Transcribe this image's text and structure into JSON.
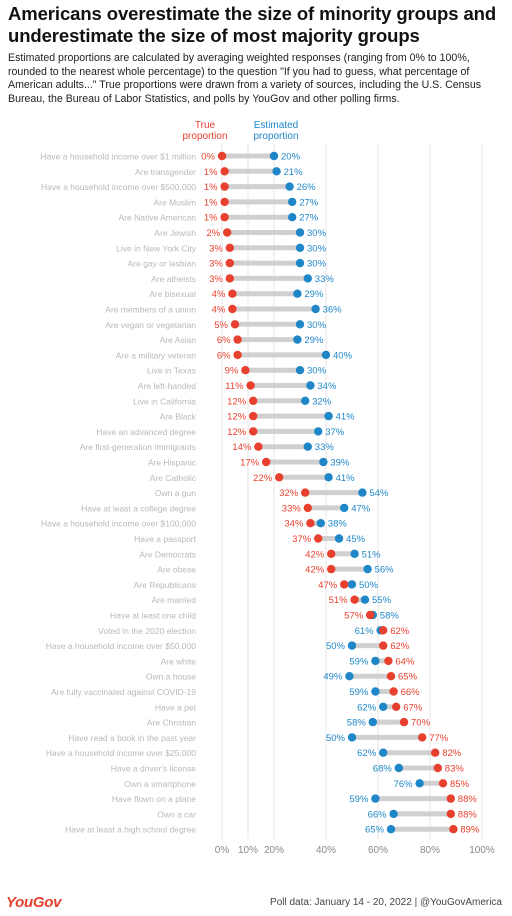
{
  "header": {
    "title": "Americans overestimate the size of minority groups and underestimate the size of most majority groups",
    "subtitle": "Estimated proportions are calculated by averaging weighted responses (ranging from 0% to 100%, rounded to the nearest whole percentage) to the question \"If you had to guess, what percentage of American adults...\" True proportions were drawn from a variety of sources, including the U.S. Census Bureau, the Bureau of Labor Statistics, and polls by YouGov and other polling firms."
  },
  "footer": {
    "brand": "YouGov",
    "note": "Poll data: January 14 - 20, 2022 | @YouGovAmerica"
  },
  "colors": {
    "true": "#e8402e",
    "estimated": "#1f87c8",
    "connector": "#d0d0d0",
    "grid": "#e6e6e6"
  },
  "chart_data": {
    "type": "dot-plot",
    "legend": {
      "true": "True proportion",
      "estimated": "Estimated proportion"
    },
    "xlim": [
      0,
      100
    ],
    "x_ticks": [
      "0%",
      "10%",
      "20%",
      "40%",
      "60%",
      "80%",
      "100%"
    ],
    "x_tick_values": [
      0,
      10,
      20,
      40,
      60,
      80,
      100
    ],
    "grid": true,
    "rows": [
      {
        "label": "Have a household income over $1 million",
        "true": 0,
        "estimated": 20,
        "true_label": "0%",
        "estimated_label": "20%"
      },
      {
        "label": "Are transgender",
        "true": 1,
        "estimated": 21,
        "true_label": "1%",
        "estimated_label": "21%"
      },
      {
        "label": "Have a household income over $500,000",
        "true": 1,
        "estimated": 26,
        "true_label": "1%",
        "estimated_label": "26%"
      },
      {
        "label": "Are Muslim",
        "true": 1,
        "estimated": 27,
        "true_label": "1%",
        "estimated_label": "27%"
      },
      {
        "label": "Are Native American",
        "true": 1,
        "estimated": 27,
        "true_label": "1%",
        "estimated_label": "27%"
      },
      {
        "label": "Are Jewish",
        "true": 2,
        "estimated": 30,
        "true_label": "2%",
        "estimated_label": "30%"
      },
      {
        "label": "Live in New York City",
        "true": 3,
        "estimated": 30,
        "true_label": "3%",
        "estimated_label": "30%"
      },
      {
        "label": "Are gay or lesbian",
        "true": 3,
        "estimated": 30,
        "true_label": "3%",
        "estimated_label": "30%"
      },
      {
        "label": "Are atheists",
        "true": 3,
        "estimated": 33,
        "true_label": "3%",
        "estimated_label": "33%"
      },
      {
        "label": "Are bisexual",
        "true": 4,
        "estimated": 29,
        "true_label": "4%",
        "estimated_label": "29%"
      },
      {
        "label": "Are members of a union",
        "true": 4,
        "estimated": 36,
        "true_label": "4%",
        "estimated_label": "36%"
      },
      {
        "label": "Are vegan or vegetarian",
        "true": 5,
        "estimated": 30,
        "true_label": "5%",
        "estimated_label": "30%"
      },
      {
        "label": "Are Asian",
        "true": 6,
        "estimated": 29,
        "true_label": "6%",
        "estimated_label": "29%"
      },
      {
        "label": "Are a military veteran",
        "true": 6,
        "estimated": 40,
        "true_label": "6%",
        "estimated_label": "40%"
      },
      {
        "label": "Live in Texas",
        "true": 9,
        "estimated": 30,
        "true_label": "9%",
        "estimated_label": "30%"
      },
      {
        "label": "Are left-handed",
        "true": 11,
        "estimated": 34,
        "true_label": "11%",
        "estimated_label": "34%"
      },
      {
        "label": "Live in California",
        "true": 12,
        "estimated": 32,
        "true_label": "12%",
        "estimated_label": "32%"
      },
      {
        "label": "Are Black",
        "true": 12,
        "estimated": 41,
        "true_label": "12%",
        "estimated_label": "41%"
      },
      {
        "label": "Have an advanced degree",
        "true": 12,
        "estimated": 37,
        "true_label": "12%",
        "estimated_label": "37%"
      },
      {
        "label": "Are first-generation immigrants",
        "true": 14,
        "estimated": 33,
        "true_label": "14%",
        "estimated_label": "33%"
      },
      {
        "label": "Are Hispanic",
        "true": 17,
        "estimated": 39,
        "true_label": "17%",
        "estimated_label": "39%"
      },
      {
        "label": "Are Catholic",
        "true": 22,
        "estimated": 41,
        "true_label": "22%",
        "estimated_label": "41%"
      },
      {
        "label": "Own a gun",
        "true": 32,
        "estimated": 54,
        "true_label": "32%",
        "estimated_label": "54%"
      },
      {
        "label": "Have at least a college degree",
        "true": 33,
        "estimated": 47,
        "true_label": "33%",
        "estimated_label": "47%"
      },
      {
        "label": "Have a household income over $100,000",
        "true": 34,
        "estimated": 38,
        "true_label": "34%",
        "estimated_label": "38%"
      },
      {
        "label": "Have a passport",
        "true": 37,
        "estimated": 45,
        "true_label": "37%",
        "estimated_label": "45%"
      },
      {
        "label": "Are Democrats",
        "true": 42,
        "estimated": 51,
        "true_label": "42%",
        "estimated_label": "51%"
      },
      {
        "label": "Are obese",
        "true": 42,
        "estimated": 56,
        "true_label": "42%",
        "estimated_label": "56%"
      },
      {
        "label": "Are Republicans",
        "true": 47,
        "estimated": 50,
        "true_label": "47%",
        "estimated_label": "50%"
      },
      {
        "label": "Are married",
        "true": 51,
        "estimated": 55,
        "true_label": "51%",
        "estimated_label": "55%"
      },
      {
        "label": "Have at least one child",
        "true": 57,
        "estimated": 58,
        "true_label": "57%",
        "estimated_label": "58%"
      },
      {
        "label": "Voted in the 2020 election",
        "true": 62,
        "estimated": 61,
        "true_label": "62%",
        "estimated_label": "61%"
      },
      {
        "label": "Have a household income over $50,000",
        "true": 62,
        "estimated": 50,
        "true_label": "62%",
        "estimated_label": "50%"
      },
      {
        "label": "Are white",
        "true": 64,
        "estimated": 59,
        "true_label": "64%",
        "estimated_label": "59%"
      },
      {
        "label": "Own a house",
        "true": 65,
        "estimated": 49,
        "true_label": "65%",
        "estimated_label": "49%"
      },
      {
        "label": "Are fully vaccinated against COVID-19",
        "true": 66,
        "estimated": 59,
        "true_label": "66%",
        "estimated_label": "59%"
      },
      {
        "label": "Have a pet",
        "true": 67,
        "estimated": 62,
        "true_label": "67%",
        "estimated_label": "62%"
      },
      {
        "label": "Are Christian",
        "true": 70,
        "estimated": 58,
        "true_label": "70%",
        "estimated_label": "58%"
      },
      {
        "label": "Have read a book in the past year",
        "true": 77,
        "estimated": 50,
        "true_label": "77%",
        "estimated_label": "50%"
      },
      {
        "label": "Have a household income over $25,000",
        "true": 82,
        "estimated": 62,
        "true_label": "82%",
        "estimated_label": "62%"
      },
      {
        "label": "Have a driver's license",
        "true": 83,
        "estimated": 68,
        "true_label": "83%",
        "estimated_label": "68%"
      },
      {
        "label": "Own a smartphone",
        "true": 85,
        "estimated": 76,
        "true_label": "85%",
        "estimated_label": "76%"
      },
      {
        "label": "Have flown on a plane",
        "true": 88,
        "estimated": 59,
        "true_label": "88%",
        "estimated_label": "59%"
      },
      {
        "label": "Own a car",
        "true": 88,
        "estimated": 66,
        "true_label": "88%",
        "estimated_label": "66%"
      },
      {
        "label": "Have at least a high school degree",
        "true": 89,
        "estimated": 65,
        "true_label": "89%",
        "estimated_label": "65%"
      }
    ]
  }
}
